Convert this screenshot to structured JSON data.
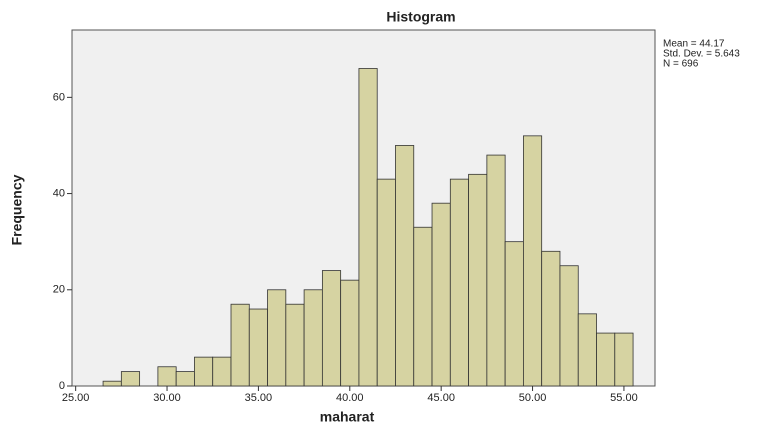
{
  "chart_data": {
    "type": "histogram",
    "title": "Histogram",
    "xlabel": "maharat",
    "ylabel": "Frequency",
    "bins": [
      26.5,
      27.5,
      28.5,
      29.5,
      30.5,
      31.5,
      32.5,
      33.5,
      34.5,
      35.5,
      36.5,
      37.5,
      38.5,
      39.5,
      40.5,
      41.5,
      42.5,
      43.5,
      44.5,
      45.5,
      46.5,
      47.5,
      48.5,
      49.5,
      50.5,
      51.5,
      52.5,
      53.5,
      54.5,
      55.5
    ],
    "counts": [
      1,
      3,
      0,
      4,
      3,
      6,
      6,
      17,
      16,
      20,
      17,
      20,
      24,
      22,
      66,
      43,
      50,
      33,
      38,
      43,
      44,
      48,
      30,
      52,
      28,
      25,
      15,
      11,
      11
    ],
    "color": "#d6d3a2",
    "xlim": [
      24.8,
      56.7
    ],
    "xticks": [
      {
        "value": 25,
        "label": "25.00"
      },
      {
        "value": 30,
        "label": "30.00"
      },
      {
        "value": 35,
        "label": "35.00"
      },
      {
        "value": 40,
        "label": "40.00"
      },
      {
        "value": 45,
        "label": "45.00"
      },
      {
        "value": 50,
        "label": "50.00"
      },
      {
        "value": 55,
        "label": "55.00"
      }
    ],
    "ylim": [
      0,
      74
    ],
    "yticks": [
      0,
      20,
      40,
      60
    ],
    "annotations": [
      "Mean = 44.17",
      "Std. Dev. = 5.643",
      "N = 696"
    ]
  }
}
